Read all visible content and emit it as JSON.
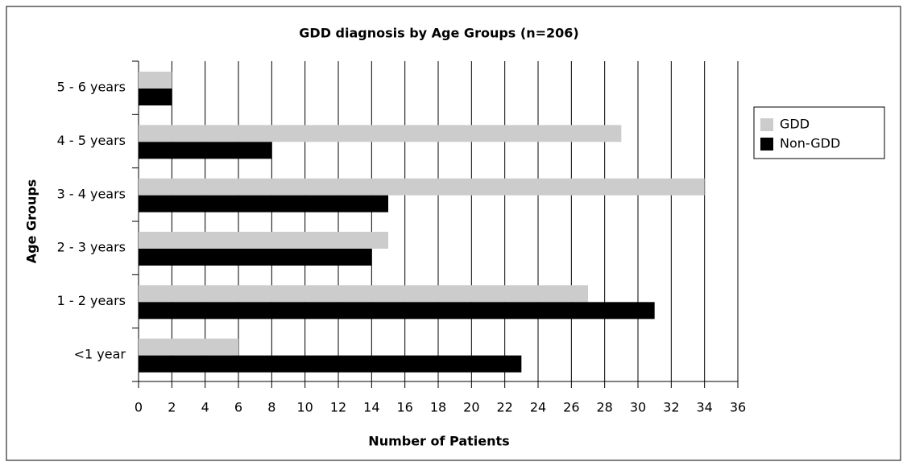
{
  "chart_data": {
    "type": "bar",
    "orientation": "horizontal",
    "title": "GDD diagnosis by Age Groups (n=206)",
    "x_label": "Number of Patients",
    "y_label": "Age Groups",
    "categories": [
      "5 - 6 years",
      "4 - 5 years",
      "3 - 4 years",
      "2 - 3 years",
      "1 - 2 years",
      "<1 year"
    ],
    "series": [
      {
        "name": "GDD",
        "color": "#cccccc",
        "values": [
          2,
          29,
          34,
          15,
          27,
          6
        ]
      },
      {
        "name": "Non-GDD",
        "color": "#000000",
        "values": [
          2,
          8,
          15,
          14,
          31,
          23
        ]
      }
    ],
    "xlim": [
      0,
      36
    ],
    "xticks": [
      0,
      2,
      4,
      6,
      8,
      10,
      12,
      14,
      16,
      18,
      20,
      22,
      24,
      26,
      28,
      30,
      32,
      34,
      36
    ],
    "grid": true,
    "legend": "right"
  }
}
